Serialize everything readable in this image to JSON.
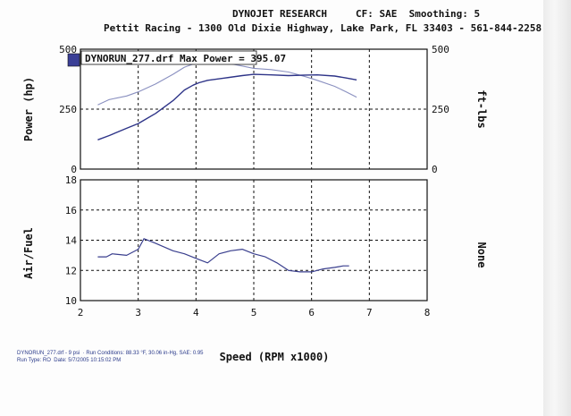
{
  "header": {
    "company": "DYNOJET RESEARCH",
    "settings": "CF: SAE  Smoothing: 5",
    "shop": "Pettit Racing - 1300 Old Dixie Highway, Lake Park, FL 33403 - 561-844-2258"
  },
  "legend": {
    "text": "DYNORUN_277.drf Max Power = 395.07",
    "swatch_color": "#3a3f96"
  },
  "footer": {
    "line1": "DYNORUN_277.drf - 9 psi  · Run Conditions: 88.33 °F, 30.06 in-Hg, SAE: 0.95",
    "line2": "Run Type: RO  Date: 5/7/2005 10:15:02 PM"
  },
  "colors": {
    "power": "#2e3488",
    "torque": "#8a90c0",
    "afr": "#3a3f8e",
    "grid": "#111111"
  },
  "chart_data": [
    {
      "type": "line",
      "title": "DYNORUN_277.drf Max Power = 395.07",
      "xlabel": "Speed (RPM x1000)",
      "ylabel": "Power (hp)",
      "y2label": "ft-lbs",
      "xlim": [
        2,
        8
      ],
      "ylim": [
        0,
        500
      ],
      "y2lim": [
        0,
        500
      ],
      "xticks": [
        "2",
        "3",
        "4",
        "5",
        "6",
        "7",
        "8"
      ],
      "yticks": [
        "0",
        "250",
        "500"
      ],
      "y2ticks": [
        "0",
        "250",
        "500"
      ],
      "grid": true,
      "series": [
        {
          "name": "Power",
          "axis": "left",
          "x": [
            2.3,
            2.5,
            2.8,
            3.0,
            3.3,
            3.6,
            3.8,
            3.95,
            4.05,
            4.2,
            4.5,
            4.8,
            5.0,
            5.3,
            5.6,
            5.9,
            6.1,
            6.4,
            6.6,
            6.78
          ],
          "values": [
            122,
            140,
            170,
            190,
            232,
            285,
            330,
            350,
            360,
            370,
            380,
            390,
            395,
            393,
            390,
            392,
            393,
            388,
            380,
            372
          ]
        },
        {
          "name": "Torque",
          "axis": "right",
          "x": [
            2.3,
            2.5,
            2.8,
            3.0,
            3.3,
            3.6,
            3.8,
            3.95,
            4.05,
            4.2,
            4.5,
            4.8,
            5.0,
            5.3,
            5.6,
            5.9,
            6.1,
            6.4,
            6.6,
            6.78
          ],
          "values": [
            268,
            290,
            305,
            322,
            355,
            395,
            425,
            438,
            440,
            444,
            444,
            430,
            420,
            415,
            405,
            385,
            370,
            345,
            322,
            300
          ]
        }
      ]
    },
    {
      "type": "line",
      "xlabel": "Speed (RPM x1000)",
      "ylabel": "Air/Fuel",
      "y2label": "None",
      "xlim": [
        2,
        8
      ],
      "ylim": [
        10,
        18
      ],
      "xticks": [
        "2",
        "3",
        "4",
        "5",
        "6",
        "7",
        "8"
      ],
      "yticks": [
        "10",
        "12",
        "14",
        "16",
        "18"
      ],
      "grid": true,
      "series": [
        {
          "name": "Air/Fuel",
          "x": [
            2.3,
            2.45,
            2.55,
            2.8,
            3.0,
            3.1,
            3.3,
            3.6,
            3.8,
            4.0,
            4.2,
            4.4,
            4.6,
            4.8,
            5.0,
            5.2,
            5.4,
            5.6,
            5.8,
            6.0,
            6.2,
            6.4,
            6.55,
            6.65
          ],
          "values": [
            12.9,
            12.9,
            13.1,
            13.0,
            13.4,
            14.1,
            13.8,
            13.3,
            13.1,
            12.8,
            12.5,
            13.1,
            13.3,
            13.4,
            13.1,
            12.9,
            12.5,
            12.0,
            11.9,
            11.9,
            12.1,
            12.2,
            12.3,
            12.3
          ]
        }
      ]
    }
  ]
}
